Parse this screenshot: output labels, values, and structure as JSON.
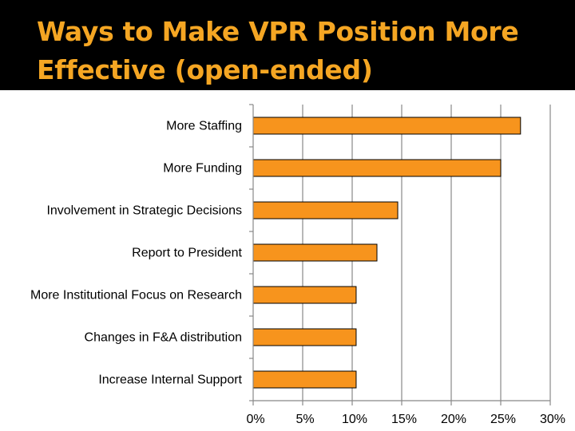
{
  "slide": {
    "title_line_1": "Ways to Make VPR Position More",
    "title_line_2": "Effective (open-ended)"
  },
  "colors": {
    "title_bg": "#000000",
    "title_text": "#F5A623",
    "bar_fill": "#F7941D",
    "bar_stroke": "#000000"
  },
  "chart_data": {
    "type": "bar",
    "orientation": "horizontal",
    "title": "Ways to Make VPR Position More Effective (open-ended)",
    "categories": [
      "More Staffing",
      "More Funding",
      "Involvement in Strategic Decisions",
      "Report to President",
      "More Institutional Focus on Research",
      "Changes in F&A distribution",
      "Increase Internal Support"
    ],
    "values": [
      27,
      25,
      14.6,
      12.5,
      10.4,
      10.4,
      10.4
    ],
    "xlim": [
      0,
      30
    ],
    "xticks": [
      0,
      5,
      10,
      15,
      20,
      25,
      30
    ],
    "xtick_labels": [
      "0%",
      "5%",
      "10%",
      "15%",
      "20%",
      "25%",
      "30%"
    ],
    "grid": true,
    "legend": "none"
  }
}
